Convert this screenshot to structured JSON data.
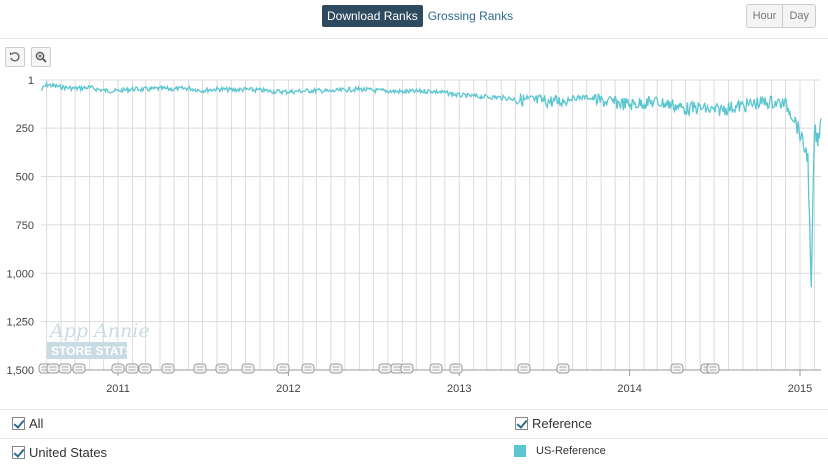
{
  "tabs": {
    "download_label": "Download Ranks",
    "grossing_label": "Grossing Ranks"
  },
  "granularity": {
    "hour_label": "Hour",
    "day_label": "Day",
    "selected": "Day"
  },
  "toolbar": {
    "reset_icon": "reset-icon",
    "zoom_icon": "zoom-icon"
  },
  "watermark": {
    "line1": "App Annie",
    "line2": "STORE STATS"
  },
  "legend": {
    "all_label": "All",
    "country_label": "United States",
    "category_label": "Reference",
    "series_label": "US-Reference",
    "series_color": "#5bc6d0"
  },
  "chart_data": {
    "type": "line",
    "title": "",
    "xlabel": "",
    "ylabel": "",
    "y_axis": {
      "reversed": true,
      "ylim": [
        1,
        1500
      ],
      "ticks": [
        1,
        250,
        500,
        750,
        1000,
        1250,
        1500
      ],
      "tick_labels": [
        "1",
        "250",
        "500",
        "750",
        "1,000",
        "1,250",
        "1,500"
      ]
    },
    "x_axis": {
      "range": [
        "2010-07-20",
        "2015-02-15"
      ],
      "ticks": [
        "2011-01-01",
        "2012-01-01",
        "2013-01-01",
        "2014-01-01",
        "2015-01-01"
      ],
      "tick_labels": [
        "2011",
        "2012",
        "2013",
        "2014",
        "2015"
      ],
      "grid": "monthly"
    },
    "series": [
      {
        "name": "US-Reference",
        "color": "#5bc6d0",
        "points": [
          [
            "2010-07-20",
            55
          ],
          [
            "2010-08-01",
            25
          ],
          [
            "2010-09-01",
            38
          ],
          [
            "2010-10-01",
            45
          ],
          [
            "2010-11-01",
            40
          ],
          [
            "2010-12-01",
            55
          ],
          [
            "2011-01-01",
            58
          ],
          [
            "2011-02-01",
            48
          ],
          [
            "2011-03-01",
            50
          ],
          [
            "2011-04-01",
            45
          ],
          [
            "2011-05-01",
            48
          ],
          [
            "2011-06-01",
            44
          ],
          [
            "2011-07-01",
            55
          ],
          [
            "2011-08-01",
            48
          ],
          [
            "2011-09-01",
            52
          ],
          [
            "2011-10-01",
            50
          ],
          [
            "2011-11-01",
            54
          ],
          [
            "2011-12-01",
            60
          ],
          [
            "2012-01-01",
            62
          ],
          [
            "2012-02-01",
            58
          ],
          [
            "2012-03-01",
            55
          ],
          [
            "2012-04-01",
            60
          ],
          [
            "2012-05-01",
            52
          ],
          [
            "2012-06-01",
            48
          ],
          [
            "2012-07-01",
            55
          ],
          [
            "2012-08-01",
            58
          ],
          [
            "2012-09-01",
            62
          ],
          [
            "2012-10-01",
            60
          ],
          [
            "2012-11-01",
            58
          ],
          [
            "2012-12-01",
            66
          ],
          [
            "2013-01-01",
            80
          ],
          [
            "2013-02-01",
            85
          ],
          [
            "2013-03-01",
            88
          ],
          [
            "2013-04-01",
            92
          ],
          [
            "2013-05-01",
            100
          ],
          [
            "2013-06-01",
            108
          ],
          [
            "2013-07-01",
            110
          ],
          [
            "2013-08-01",
            112
          ],
          [
            "2013-09-01",
            95
          ],
          [
            "2013-10-01",
            90
          ],
          [
            "2013-11-01",
            110
          ],
          [
            "2013-12-01",
            118
          ],
          [
            "2014-01-01",
            128
          ],
          [
            "2014-02-01",
            118
          ],
          [
            "2014-03-01",
            115
          ],
          [
            "2014-04-01",
            128
          ],
          [
            "2014-05-01",
            150
          ],
          [
            "2014-06-01",
            145
          ],
          [
            "2014-07-01",
            160
          ],
          [
            "2014-08-01",
            145
          ],
          [
            "2014-09-01",
            135
          ],
          [
            "2014-10-01",
            120
          ],
          [
            "2014-11-01",
            115
          ],
          [
            "2014-12-01",
            125
          ],
          [
            "2014-12-20",
            200
          ],
          [
            "2015-01-01",
            280
          ],
          [
            "2015-01-10",
            350
          ],
          [
            "2015-01-18",
            400
          ],
          [
            "2015-01-25",
            1100
          ],
          [
            "2015-02-01",
            250
          ],
          [
            "2015-02-08",
            330
          ],
          [
            "2015-02-15",
            200
          ]
        ]
      }
    ],
    "annotations_count": 30
  }
}
